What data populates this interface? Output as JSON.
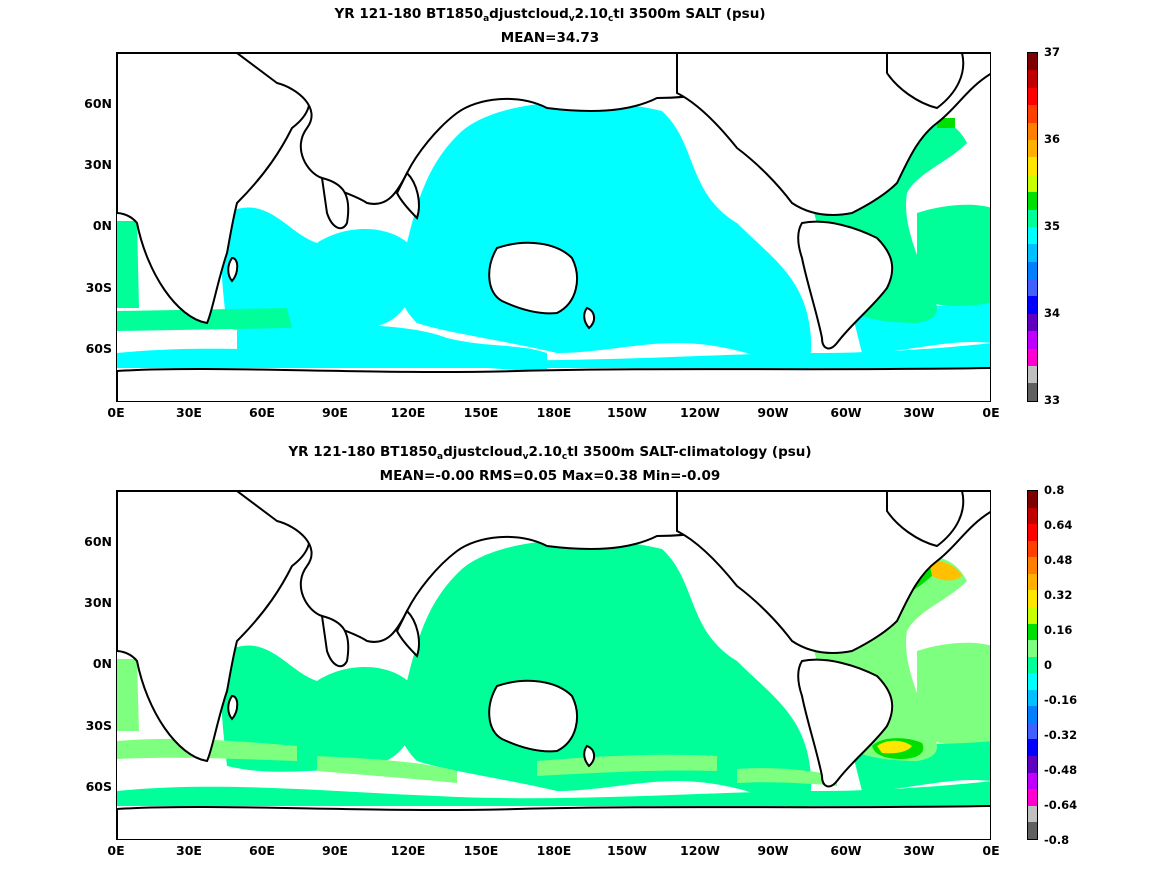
{
  "lat_ticks": [
    "60N",
    "30N",
    "0N",
    "30S",
    "60S"
  ],
  "lon_ticks": [
    "0E",
    "30E",
    "60E",
    "90E",
    "120E",
    "150E",
    "180E",
    "150W",
    "120W",
    "90W",
    "60W",
    "30W",
    "0E"
  ],
  "colors": {
    "coast": "#000000",
    "ocean_cyan": "#00ffff",
    "ocean_spring": "#00ff99",
    "ocean_lightgreen": "#7fff7f",
    "green": "#00e000",
    "yellow": "#ffe600",
    "orange": "#ffc000",
    "land": "#ffffff"
  },
  "panels": [
    {
      "id": "top",
      "title_parts": [
        "YR 121-180 BT1850",
        "a",
        "djustcloud",
        "v",
        "2.10",
        "c",
        "tl 3500m SALT (psu)"
      ],
      "title_line2": "MEAN=34.73",
      "colorbar": {
        "labels": [
          "37",
          "36",
          "35",
          "34",
          "33"
        ],
        "colors_top_to_bottom": [
          "#7f0000",
          "#c00000",
          "#ff0000",
          "#ff4000",
          "#ff8000",
          "#ffb000",
          "#ffe600",
          "#c8ff00",
          "#00e000",
          "#00ff99",
          "#00ffff",
          "#00c0ff",
          "#0080ff",
          "#4060ff",
          "#0000ff",
          "#6000c0",
          "#c000ff",
          "#ff00d0",
          "#c0c0c0",
          "#606060"
        ]
      }
    },
    {
      "id": "bottom",
      "title_parts": [
        "YR 121-180 BT1850",
        "a",
        "djustcloud",
        "v",
        "2.10",
        "c",
        "tl 3500m SALT-climatology (psu)"
      ],
      "title_line2": "MEAN=-0.00   RMS=0.05   Max=0.38   Min=-0.09",
      "colorbar": {
        "labels": [
          "0.8",
          "0.64",
          "0.48",
          "0.32",
          "0.16",
          "0",
          "-0.16",
          "-0.32",
          "-0.48",
          "-0.64",
          "-0.8"
        ],
        "colors_top_to_bottom": [
          "#7f0000",
          "#c00000",
          "#ff0000",
          "#ff4000",
          "#ff8000",
          "#ffb000",
          "#ffe600",
          "#c8ff00",
          "#00e000",
          "#7fff7f",
          "#00ff99",
          "#00ffff",
          "#00c0ff",
          "#0080ff",
          "#4060ff",
          "#0000ff",
          "#6000c0",
          "#c000ff",
          "#ff00d0",
          "#c0c0c0",
          "#606060"
        ]
      }
    }
  ]
}
